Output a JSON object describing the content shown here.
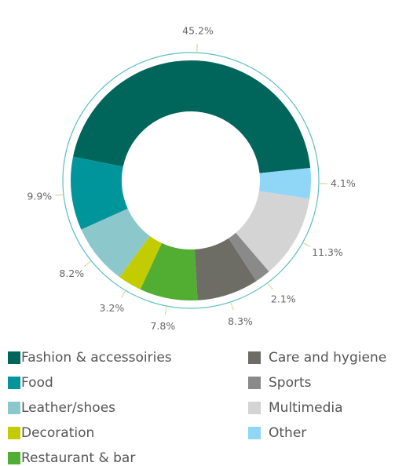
{
  "chart_data": {
    "type": "donut",
    "categories": [
      "Fashion & accessoiries",
      "Food",
      "Leather/shoes",
      "Decoration",
      "Restaurant & bar",
      "Care and hygiene",
      "Sports",
      "Multimedia",
      "Other"
    ],
    "values": [
      45.2,
      9.9,
      8.2,
      3.2,
      7.8,
      8.3,
      2.1,
      11.3,
      4.1
    ],
    "value_labels": [
      "45.2%",
      "9.9%",
      "8.2%",
      "3.2%",
      "7.8%",
      "8.3%",
      "2.1%",
      "11.3%",
      "4.1%"
    ],
    "colors": [
      "#00665c",
      "#00959a",
      "#8cc7cb",
      "#c3cc00",
      "#52ae32",
      "#6d6d65",
      "#8a8a8a",
      "#d4d4d4",
      "#8fd6f7"
    ],
    "legend": "bottom"
  }
}
